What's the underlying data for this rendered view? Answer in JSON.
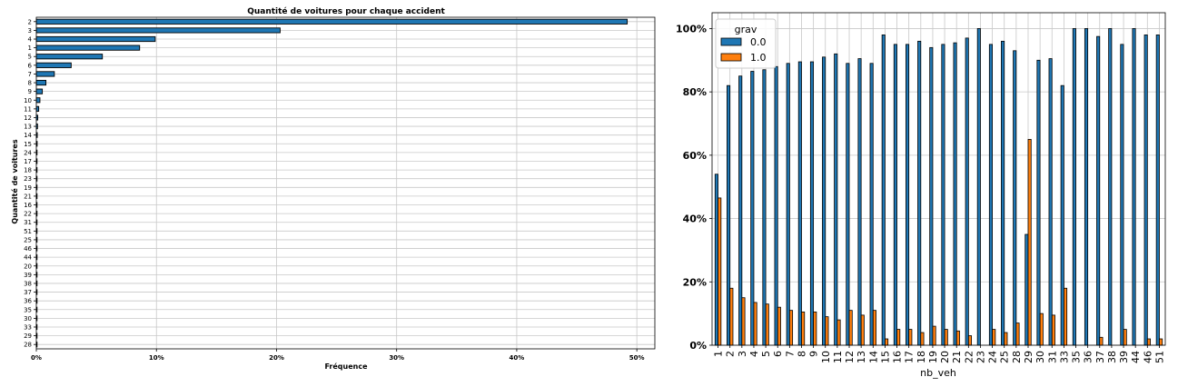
{
  "chart_data": [
    {
      "type": "bar",
      "orientation": "horizontal",
      "title": "Quantité de voitures pour chaque accident",
      "xlabel": "Fréquence",
      "ylabel": "Quantité de voitures",
      "xlim": [
        0,
        51.5
      ],
      "x_tick_values": [
        0,
        10,
        20,
        30,
        40,
        50
      ],
      "x_tick_labels": [
        "0%",
        "10%",
        "20%",
        "30%",
        "40%",
        "50%"
      ],
      "grid": true,
      "bar_color": "#1f77b4",
      "categories": [
        "2",
        "3",
        "4",
        "1",
        "5",
        "6",
        "7",
        "8",
        "9",
        "10",
        "11",
        "12",
        "13",
        "14",
        "15",
        "24",
        "17",
        "18",
        "23",
        "19",
        "21",
        "16",
        "22",
        "31",
        "51",
        "25",
        "46",
        "44",
        "20",
        "39",
        "38",
        "37",
        "36",
        "35",
        "30",
        "33",
        "29",
        "28"
      ],
      "values": [
        49.2,
        20.3,
        9.9,
        8.6,
        5.5,
        2.9,
        1.5,
        0.8,
        0.5,
        0.3,
        0.2,
        0.12,
        0.1,
        0.08,
        0.07,
        0.06,
        0.05,
        0.05,
        0.04,
        0.04,
        0.03,
        0.03,
        0.03,
        0.02,
        0.02,
        0.02,
        0.01,
        0.01,
        0.01,
        0.01,
        0.01,
        0.01,
        0.01,
        0.01,
        0.01,
        0.01,
        0.01,
        0.01
      ]
    },
    {
      "type": "bar",
      "orientation": "vertical",
      "xlabel": "nb_veh",
      "ylim": [
        0,
        105
      ],
      "y_tick_values": [
        0,
        20,
        40,
        60,
        80,
        100
      ],
      "y_tick_labels": [
        "0%",
        "20%",
        "40%",
        "60%",
        "80%",
        "100%"
      ],
      "grid": true,
      "legend": {
        "title": "grav",
        "position": "top-left"
      },
      "categories": [
        "1",
        "2",
        "3",
        "4",
        "5",
        "6",
        "7",
        "8",
        "9",
        "10",
        "11",
        "12",
        "13",
        "14",
        "15",
        "16",
        "17",
        "18",
        "19",
        "20",
        "21",
        "22",
        "23",
        "24",
        "25",
        "28",
        "29",
        "30",
        "31",
        "33",
        "35",
        "36",
        "37",
        "38",
        "39",
        "44",
        "46",
        "51"
      ],
      "series": [
        {
          "name": "0.0",
          "color": "#1f77b4",
          "values": [
            54,
            82,
            85,
            86.5,
            87,
            88,
            89,
            89.5,
            89.5,
            91,
            92,
            89,
            90.5,
            89,
            98,
            95,
            95,
            96,
            94,
            95,
            95.5,
            97,
            100,
            95,
            96,
            93,
            35,
            90,
            90.5,
            82,
            100,
            100,
            97.5,
            100,
            95,
            100,
            98,
            98
          ]
        },
        {
          "name": "1.0",
          "color": "#ff7f0e",
          "values": [
            46.5,
            18,
            15,
            13.5,
            13,
            12,
            11,
            10.5,
            10.5,
            9,
            8,
            11,
            9.5,
            11,
            2,
            5,
            5,
            4,
            6,
            5,
            4.5,
            3,
            0,
            5,
            4,
            7,
            65,
            10,
            9.5,
            18,
            0,
            0,
            2.5,
            0,
            5,
            0,
            2,
            2
          ]
        }
      ]
    }
  ]
}
